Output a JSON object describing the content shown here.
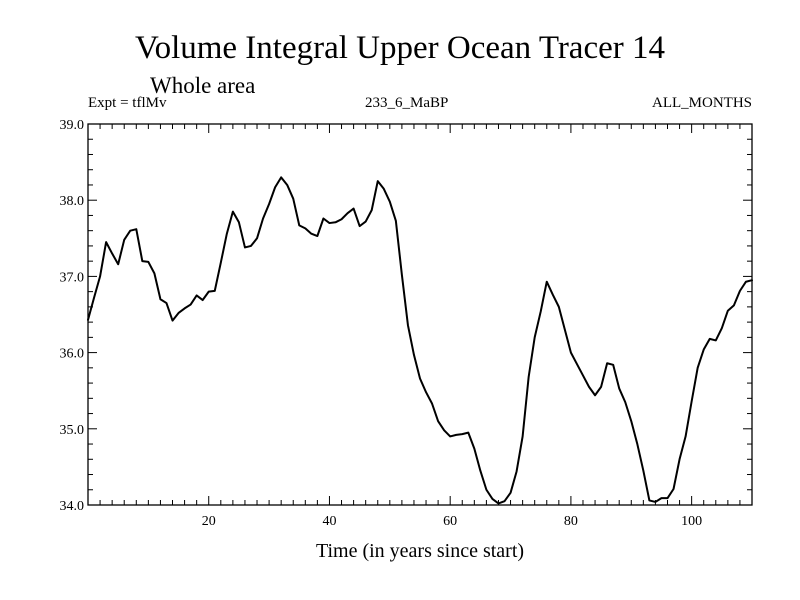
{
  "header": {
    "title": "Volume Integral Upper Ocean Tracer 14",
    "subtitle": "Whole area",
    "experiment": "Expt = tflMv",
    "run_id": "233_6_MaBP",
    "period": "ALL_MONTHS"
  },
  "chart_data": {
    "type": "line",
    "title": "Volume Integral Upper Ocean Tracer 14",
    "subtitle": "Whole area",
    "xlabel": "Time (in years since start)",
    "ylabel": "",
    "xlim": [
      0,
      110
    ],
    "ylim": [
      34.0,
      39.0
    ],
    "x_ticks": [
      20,
      40,
      60,
      80,
      100
    ],
    "x_tick_labels": [
      "20",
      "40",
      "60",
      "80",
      "100"
    ],
    "y_ticks": [
      34.0,
      35.0,
      36.0,
      37.0,
      38.0,
      39.0
    ],
    "y_tick_labels": [
      "34.0",
      "35.0",
      "36.0",
      "37.0",
      "38.0",
      "39.0"
    ],
    "grid": false,
    "series": [
      {
        "name": "Tracer 14",
        "color": "#000000",
        "x": [
          0,
          1,
          2,
          3,
          4,
          5,
          6,
          7,
          8,
          9,
          10,
          11,
          12,
          13,
          14,
          15,
          16,
          17,
          18,
          19,
          20,
          21,
          22,
          23,
          24,
          25,
          26,
          27,
          28,
          29,
          30,
          31,
          32,
          33,
          34,
          35,
          36,
          37,
          38,
          39,
          40,
          41,
          42,
          43,
          44,
          45,
          46,
          47,
          48,
          49,
          50,
          51,
          52,
          53,
          54,
          55,
          56,
          57,
          58,
          59,
          60,
          61,
          62,
          63,
          64,
          65,
          66,
          67,
          68,
          69,
          70,
          71,
          72,
          73,
          74,
          75,
          76,
          77,
          78,
          79,
          80,
          81,
          82,
          83,
          84,
          85,
          86,
          87,
          88,
          89,
          90,
          91,
          92,
          93,
          94,
          95,
          96,
          97,
          98,
          99,
          100,
          101,
          102,
          103,
          104,
          105,
          106,
          107,
          108,
          109,
          110
        ],
        "values": [
          36.43,
          36.72,
          37.0,
          37.45,
          37.3,
          37.16,
          37.48,
          37.6,
          37.62,
          37.2,
          37.19,
          37.04,
          36.7,
          36.65,
          36.42,
          36.52,
          36.58,
          36.63,
          36.75,
          36.69,
          36.8,
          36.81,
          37.18,
          37.56,
          37.85,
          37.71,
          37.38,
          37.4,
          37.5,
          37.76,
          37.95,
          38.17,
          38.3,
          38.2,
          38.02,
          37.67,
          37.63,
          37.56,
          37.53,
          37.76,
          37.7,
          37.71,
          37.75,
          37.83,
          37.89,
          37.66,
          37.72,
          37.87,
          38.25,
          38.15,
          37.98,
          37.73,
          37.02,
          36.36,
          35.97,
          35.66,
          35.48,
          35.33,
          35.1,
          34.98,
          34.9,
          34.92,
          34.93,
          34.95,
          34.74,
          34.45,
          34.2,
          34.08,
          34.02,
          34.05,
          34.16,
          34.44,
          34.9,
          35.68,
          36.2,
          36.54,
          36.93,
          36.76,
          36.6,
          36.3,
          36.0,
          35.85,
          35.7,
          35.55,
          35.44,
          35.55,
          35.86,
          35.84,
          35.53,
          35.35,
          35.1,
          34.8,
          34.45,
          34.06,
          34.04,
          34.09,
          34.09,
          34.21,
          34.6,
          34.9,
          35.36,
          35.8,
          36.04,
          36.18,
          36.16,
          36.32,
          36.55,
          36.62,
          36.81,
          36.93,
          36.95
        ]
      }
    ]
  }
}
